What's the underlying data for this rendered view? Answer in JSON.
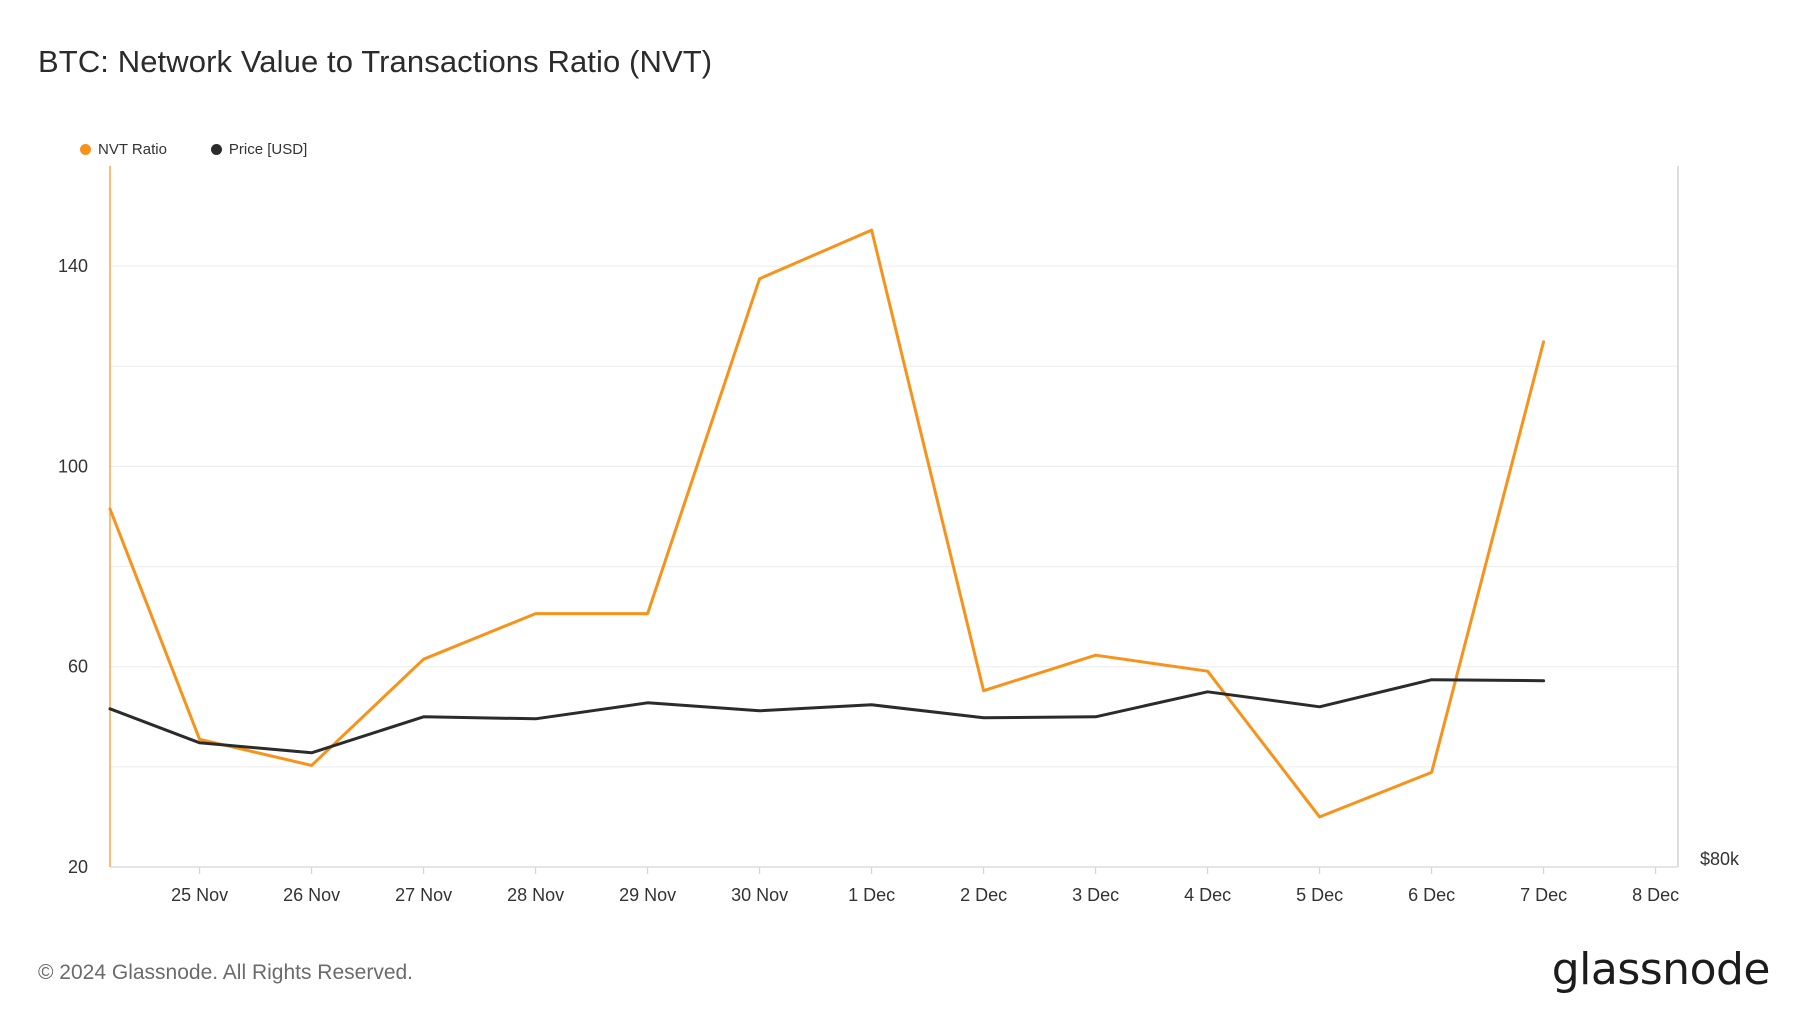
{
  "header": {
    "title": "BTC: Network Value to Transactions Ratio (NVT)"
  },
  "footer": {
    "copyright": "© 2024 Glassnode. All Rights Reserved.",
    "brand": "glassnode"
  },
  "colors": {
    "nvt": "#f7931a",
    "price": "#2b2b2b",
    "grid": "#ececec",
    "axis": "#d6d6d6"
  },
  "chart_data": {
    "type": "line",
    "title": "BTC: Network Value to Transactions Ratio (NVT)",
    "xlabel": "",
    "ylabel": "",
    "ylim": [
      20,
      160
    ],
    "y_ticks": [
      20,
      60,
      100,
      140
    ],
    "y_tick_labels": [
      "20",
      "60",
      "100",
      "140"
    ],
    "x_range": [
      -0.8,
      13.2
    ],
    "x_ticks": [
      0,
      1,
      2,
      3,
      4,
      5,
      6,
      7,
      8,
      9,
      10,
      11,
      12,
      13
    ],
    "categories": [
      "25 Nov",
      "26 Nov",
      "27 Nov",
      "28 Nov",
      "29 Nov",
      "30 Nov",
      "1 Dec",
      "2 Dec",
      "3 Dec",
      "4 Dec",
      "5 Dec",
      "6 Dec",
      "7 Dec",
      "8 Dec"
    ],
    "right_axis_label": "$80k",
    "legend": [
      "NVT Ratio",
      "Price [USD]"
    ],
    "series": [
      {
        "name": "NVT Ratio",
        "axis": "left",
        "x": [
          -0.8,
          0,
          1,
          2,
          3,
          4,
          5,
          6,
          7,
          8,
          9,
          10,
          11,
          12
        ],
        "values": [
          91.5,
          45.5,
          40.3,
          61.5,
          70.6,
          70.6,
          137.5,
          147.2,
          55.2,
          62.3,
          59.1,
          30.0,
          38.9,
          124.9
        ]
      },
      {
        "name": "Price [USD]",
        "axis": "right",
        "x": [
          -0.8,
          0,
          1,
          2,
          3,
          4,
          5,
          6,
          7,
          8,
          9,
          10,
          11,
          12
        ],
        "values": [
          95800,
          92400,
          91400,
          95000,
          94800,
          96400,
          95600,
          96200,
          94900,
          95000,
          97500,
          96000,
          98700,
          98600
        ],
        "ylim_right": [
          80000,
          150000
        ]
      }
    ]
  }
}
